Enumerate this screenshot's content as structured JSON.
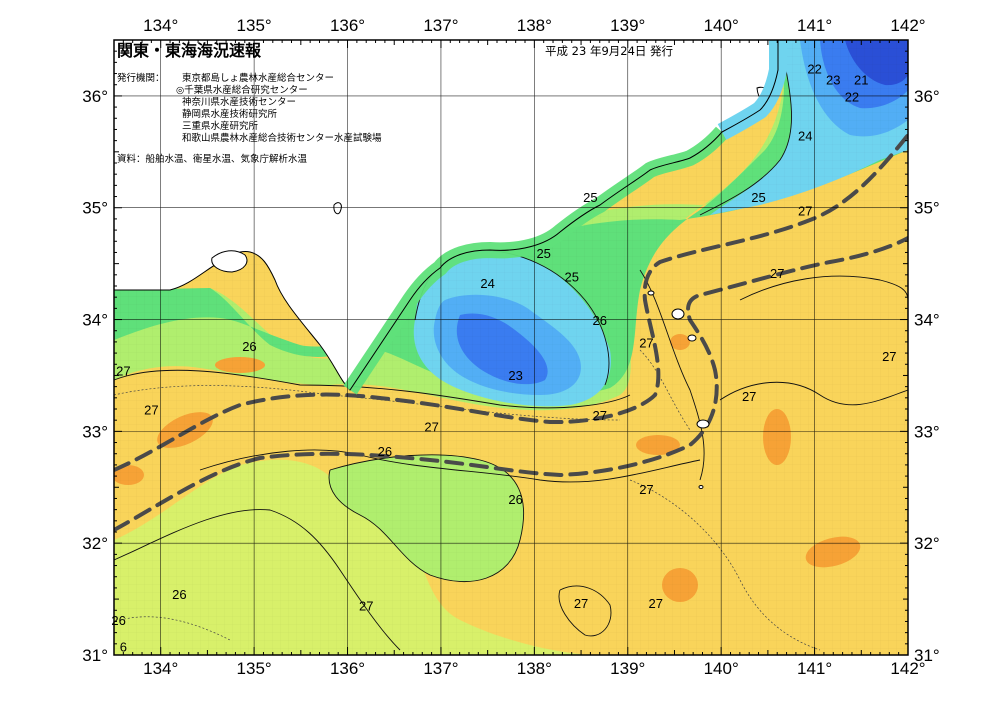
{
  "header": {
    "title": "関東・東海海況速報",
    "date": "平成 23 年9月24日 発行",
    "issuer_label": "発行機関：",
    "issuers": [
      "東京都島しょ農林水産総合センター",
      "◎千葉県水産総合研究センター",
      "神奈川県水産技術センター",
      "静岡県水産技術研究所",
      "三重県水産研究所",
      "和歌山県農林水産総合技術センター水産試験場"
    ],
    "sources": "資料：船舶水温、衛星水温、気象庁解析水温"
  },
  "axes": {
    "lon_labels": [
      "134°",
      "135°",
      "136°",
      "137°",
      "138°",
      "139°",
      "140°",
      "141°",
      "142°"
    ],
    "lat_labels": [
      "36°",
      "35°",
      "34°",
      "33°",
      "32°",
      "31°"
    ]
  },
  "contour_labels": [
    {
      "text": "22",
      "lon": 141.0,
      "lat": 36.2
    },
    {
      "text": "23",
      "lon": 141.2,
      "lat": 36.1
    },
    {
      "text": "21",
      "lon": 141.5,
      "lat": 36.1
    },
    {
      "text": "22",
      "lon": 141.4,
      "lat": 35.95
    },
    {
      "text": "24",
      "lon": 140.9,
      "lat": 35.6
    },
    {
      "text": "25",
      "lon": 140.4,
      "lat": 35.05
    },
    {
      "text": "27",
      "lon": 140.9,
      "lat": 34.93
    },
    {
      "text": "25",
      "lon": 138.6,
      "lat": 35.05
    },
    {
      "text": "25",
      "lon": 138.1,
      "lat": 34.55
    },
    {
      "text": "25",
      "lon": 138.4,
      "lat": 34.34
    },
    {
      "text": "24",
      "lon": 137.5,
      "lat": 34.28
    },
    {
      "text": "26",
      "lon": 138.7,
      "lat": 33.95
    },
    {
      "text": "27",
      "lon": 139.2,
      "lat": 33.75
    },
    {
      "text": "27",
      "lon": 140.6,
      "lat": 34.37
    },
    {
      "text": "23",
      "lon": 137.8,
      "lat": 33.46
    },
    {
      "text": "26",
      "lon": 134.95,
      "lat": 33.72
    },
    {
      "text": "27",
      "lon": 133.6,
      "lat": 33.5
    },
    {
      "text": "27",
      "lon": 133.9,
      "lat": 33.15
    },
    {
      "text": "27",
      "lon": 141.8,
      "lat": 33.63
    },
    {
      "text": "27",
      "lon": 140.3,
      "lat": 33.27
    },
    {
      "text": "27",
      "lon": 136.9,
      "lat": 33.0
    },
    {
      "text": "27",
      "lon": 138.7,
      "lat": 33.1
    },
    {
      "text": "26",
      "lon": 136.4,
      "lat": 32.78
    },
    {
      "text": "26",
      "lon": 137.8,
      "lat": 32.35
    },
    {
      "text": "27",
      "lon": 139.2,
      "lat": 32.44
    },
    {
      "text": "26",
      "lon": 134.2,
      "lat": 31.5
    },
    {
      "text": "26",
      "lon": 133.55,
      "lat": 31.27
    },
    {
      "text": "27",
      "lon": 136.2,
      "lat": 31.4
    },
    {
      "text": "27",
      "lon": 138.5,
      "lat": 31.42
    },
    {
      "text": "27",
      "lon": 139.3,
      "lat": 31.42
    },
    {
      "text": "6",
      "lon": 133.6,
      "lat": 31.03
    }
  ],
  "colors": {
    "c21": "#2a4fd6",
    "c22": "#3a7cf0",
    "c23": "#52aef5",
    "c24": "#6fd4ef",
    "c25": "#5fe07a",
    "c26": "#b0ee6e",
    "c26b": "#d8f06a",
    "c27": "#f9d45a",
    "c28": "#f6a236",
    "land": "#ffffff",
    "kuroshio": "#4a4a4a"
  }
}
